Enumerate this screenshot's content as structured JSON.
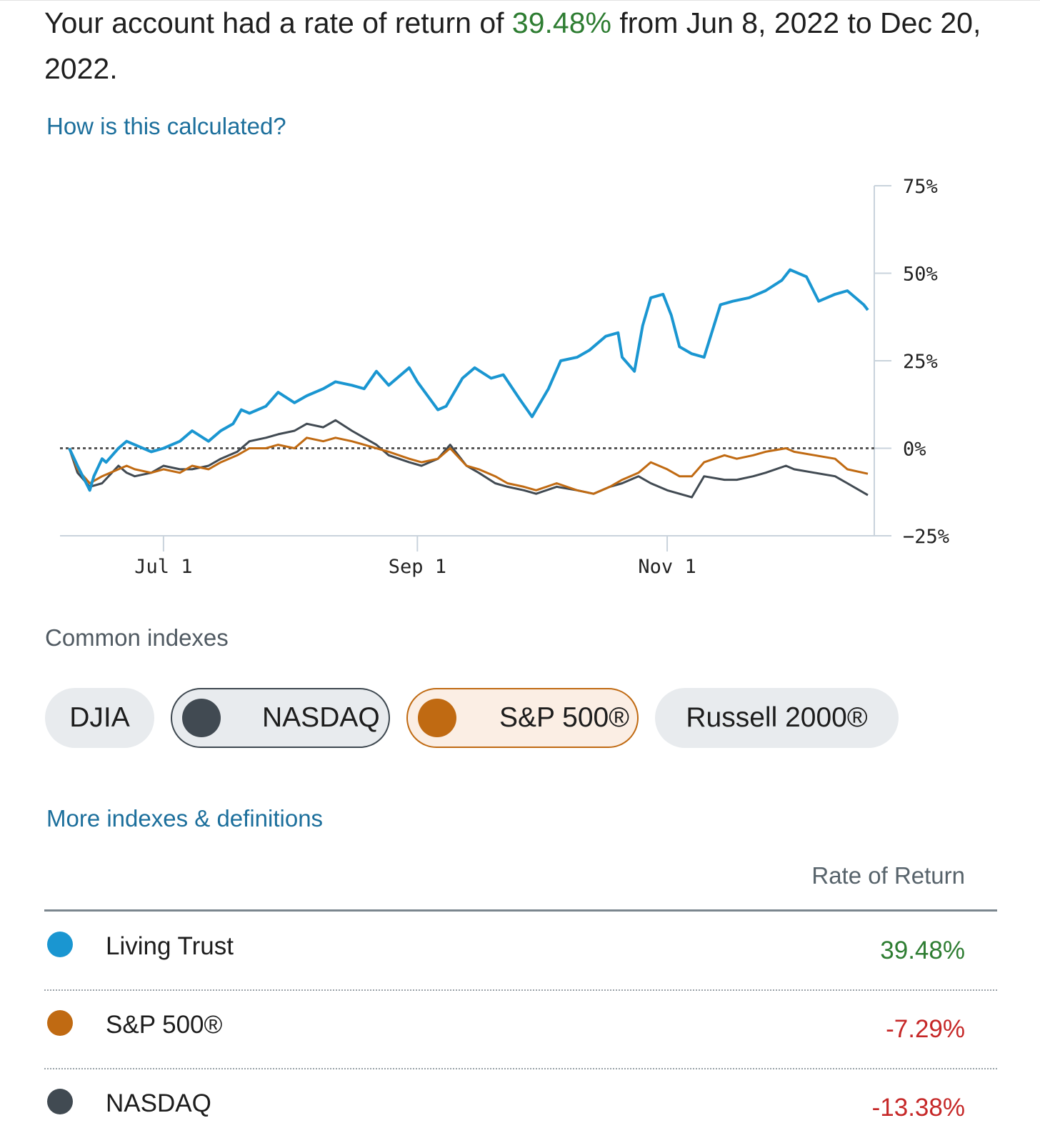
{
  "summary": {
    "prefix": "Your account had a rate of return of ",
    "rate": "39.48%",
    "suffix": " from Jun 8, 2022 to Dec 20, 2022."
  },
  "links": {
    "calc": "How is this calculated?",
    "more": "More indexes & definitions"
  },
  "indexes": {
    "title": "Common indexes",
    "chips": [
      {
        "label": "DJIA",
        "selected": false
      },
      {
        "label": "NASDAQ",
        "selected": true,
        "color": "#414a52"
      },
      {
        "label": "S&P 500®",
        "selected": true,
        "color": "#c06a12"
      },
      {
        "label": "Russell 2000®",
        "selected": false
      }
    ]
  },
  "table": {
    "header": "Rate of Return",
    "rows": [
      {
        "name": "Living Trust",
        "value": "39.48%",
        "color": "#1a96d1"
      },
      {
        "name": "S&P 500®",
        "value": "-7.29%",
        "color": "#c06a12"
      },
      {
        "name": "NASDAQ",
        "value": "-13.38%",
        "color": "#414a52"
      }
    ]
  },
  "chart_data": {
    "type": "line",
    "x_ticks": [
      "Jul 1",
      "Sep 1",
      "Nov 1"
    ],
    "y_ticks": [
      "75%",
      "50%",
      "25%",
      "0%",
      "−25%"
    ],
    "ylim": [
      -25,
      75
    ],
    "xlim": [
      "2022-06-08",
      "2022-12-20"
    ],
    "reference_line": 0,
    "series": [
      {
        "name": "Living Trust",
        "color": "#1a96d1",
        "x": [
          "2022-06-08",
          "2022-06-10",
          "2022-06-13",
          "2022-06-14",
          "2022-06-16",
          "2022-06-17",
          "2022-06-20",
          "2022-06-22",
          "2022-06-24",
          "2022-06-28",
          "2022-07-01",
          "2022-07-05",
          "2022-07-08",
          "2022-07-12",
          "2022-07-15",
          "2022-07-18",
          "2022-07-20",
          "2022-07-22",
          "2022-07-26",
          "2022-07-29",
          "2022-08-02",
          "2022-08-05",
          "2022-08-09",
          "2022-08-12",
          "2022-08-16",
          "2022-08-19",
          "2022-08-22",
          "2022-08-25",
          "2022-08-30",
          "2022-09-01",
          "2022-09-06",
          "2022-09-08",
          "2022-09-12",
          "2022-09-15",
          "2022-09-19",
          "2022-09-22",
          "2022-09-26",
          "2022-09-29",
          "2022-10-03",
          "2022-10-06",
          "2022-10-10",
          "2022-10-13",
          "2022-10-17",
          "2022-10-20",
          "2022-10-21",
          "2022-10-24",
          "2022-10-26",
          "2022-10-28",
          "2022-10-31",
          "2022-11-02",
          "2022-11-04",
          "2022-11-07",
          "2022-11-10",
          "2022-11-14",
          "2022-11-17",
          "2022-11-21",
          "2022-11-25",
          "2022-11-29",
          "2022-12-01",
          "2022-12-05",
          "2022-12-08",
          "2022-12-12",
          "2022-12-15",
          "2022-12-19",
          "2022-12-20"
        ],
        "y": [
          0,
          -5,
          -12,
          -8,
          -3,
          -4,
          0,
          2,
          1,
          -1,
          0,
          2,
          5,
          2,
          5,
          7,
          11,
          10,
          12,
          16,
          13,
          15,
          17,
          19,
          18,
          17,
          22,
          18,
          23,
          19,
          11,
          12,
          20,
          23,
          20,
          21,
          14,
          9,
          17,
          25,
          26,
          28,
          32,
          33,
          26,
          22,
          35,
          43,
          44,
          38,
          29,
          27,
          26,
          41,
          42,
          43,
          45,
          48,
          51,
          49,
          42,
          44,
          45,
          41,
          39.48
        ]
      },
      {
        "name": "S&P 500®",
        "color": "#c06a12",
        "x": [
          "2022-06-08",
          "2022-06-10",
          "2022-06-13",
          "2022-06-16",
          "2022-06-20",
          "2022-06-22",
          "2022-06-24",
          "2022-06-28",
          "2022-07-01",
          "2022-07-05",
          "2022-07-08",
          "2022-07-12",
          "2022-07-15",
          "2022-07-19",
          "2022-07-22",
          "2022-07-26",
          "2022-07-29",
          "2022-08-02",
          "2022-08-05",
          "2022-08-09",
          "2022-08-12",
          "2022-08-16",
          "2022-08-19",
          "2022-08-22",
          "2022-08-25",
          "2022-08-30",
          "2022-09-02",
          "2022-09-06",
          "2022-09-09",
          "2022-09-13",
          "2022-09-16",
          "2022-09-20",
          "2022-09-23",
          "2022-09-27",
          "2022-09-30",
          "2022-10-05",
          "2022-10-10",
          "2022-10-14",
          "2022-10-18",
          "2022-10-21",
          "2022-10-25",
          "2022-10-28",
          "2022-11-01",
          "2022-11-04",
          "2022-11-07",
          "2022-11-10",
          "2022-11-15",
          "2022-11-18",
          "2022-11-22",
          "2022-11-25",
          "2022-11-30",
          "2022-12-02",
          "2022-12-07",
          "2022-12-12",
          "2022-12-15",
          "2022-12-20"
        ],
        "y": [
          0,
          -6,
          -10,
          -8,
          -6,
          -5,
          -6,
          -7,
          -6,
          -7,
          -5,
          -6,
          -4,
          -2,
          0,
          0,
          1,
          0,
          3,
          2,
          3,
          2,
          1,
          0,
          -1,
          -3,
          -4,
          -3,
          0,
          -5,
          -6,
          -8,
          -10,
          -11,
          -12,
          -10,
          -12,
          -13,
          -11,
          -9,
          -7,
          -4,
          -6,
          -8,
          -8,
          -4,
          -2,
          -3,
          -2,
          -1,
          0,
          -1,
          -2,
          -3,
          -6,
          -7.29
        ]
      },
      {
        "name": "NASDAQ",
        "color": "#414a52",
        "x": [
          "2022-06-08",
          "2022-06-10",
          "2022-06-13",
          "2022-06-16",
          "2022-06-20",
          "2022-06-22",
          "2022-06-24",
          "2022-06-28",
          "2022-07-01",
          "2022-07-05",
          "2022-07-08",
          "2022-07-12",
          "2022-07-15",
          "2022-07-19",
          "2022-07-22",
          "2022-07-26",
          "2022-07-29",
          "2022-08-02",
          "2022-08-05",
          "2022-08-09",
          "2022-08-12",
          "2022-08-16",
          "2022-08-19",
          "2022-08-22",
          "2022-08-25",
          "2022-08-30",
          "2022-09-02",
          "2022-09-06",
          "2022-09-09",
          "2022-09-13",
          "2022-09-16",
          "2022-09-20",
          "2022-09-23",
          "2022-09-27",
          "2022-09-30",
          "2022-10-05",
          "2022-10-10",
          "2022-10-14",
          "2022-10-18",
          "2022-10-21",
          "2022-10-25",
          "2022-10-28",
          "2022-11-01",
          "2022-11-04",
          "2022-11-07",
          "2022-11-10",
          "2022-11-15",
          "2022-11-18",
          "2022-11-22",
          "2022-11-25",
          "2022-11-30",
          "2022-12-02",
          "2022-12-07",
          "2022-12-12",
          "2022-12-15",
          "2022-12-20"
        ],
        "y": [
          0,
          -7,
          -11,
          -10,
          -5,
          -7,
          -8,
          -7,
          -5,
          -6,
          -6,
          -5,
          -3,
          -1,
          2,
          3,
          4,
          5,
          7,
          6,
          8,
          5,
          3,
          1,
          -2,
          -4,
          -5,
          -3,
          1,
          -5,
          -7,
          -10,
          -11,
          -12,
          -13,
          -11,
          -12,
          -13,
          -11,
          -10,
          -8,
          -10,
          -12,
          -13,
          -14,
          -8,
          -9,
          -9,
          -8,
          -7,
          -5,
          -6,
          -7,
          -8,
          -10,
          -13.38
        ]
      }
    ]
  }
}
